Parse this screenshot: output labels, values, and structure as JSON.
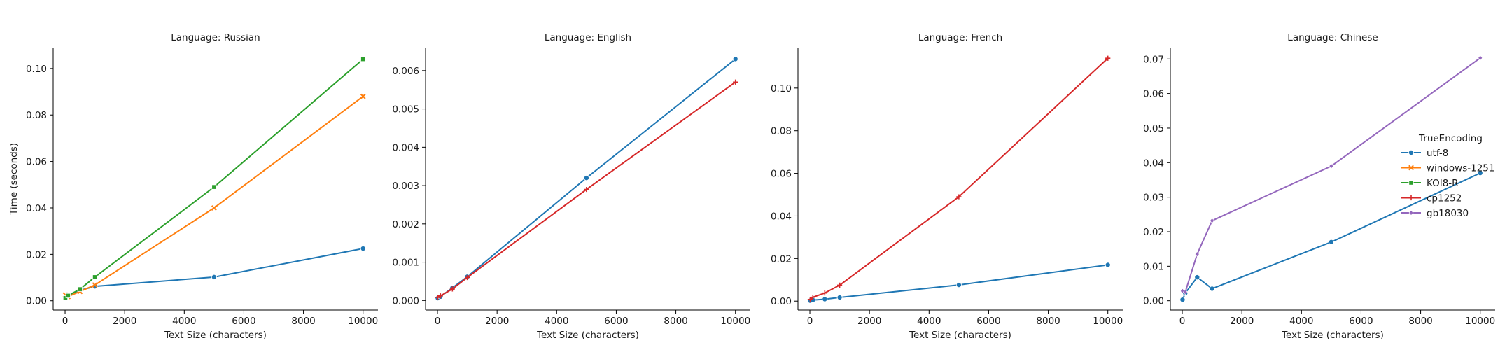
{
  "figure": {
    "suptitle": "",
    "legend": {
      "title": "TrueEncoding",
      "placement": "right",
      "entries": [
        {
          "name": "utf-8",
          "color": "#1f77b4",
          "marker": "circle"
        },
        {
          "name": "windows-1251",
          "color": "#ff7f0e",
          "marker": "x"
        },
        {
          "name": "KOI8-R",
          "color": "#2ca02c",
          "marker": "square"
        },
        {
          "name": "cp1252",
          "color": "#d62728",
          "marker": "plus"
        },
        {
          "name": "gb18030",
          "color": "#9467bd",
          "marker": "diamond"
        }
      ]
    }
  },
  "chart_data": [
    {
      "type": "line",
      "title": "Language: Russian",
      "xlabel": "Text Size (characters)",
      "ylabel": "Time (seconds)",
      "xlim": [
        -400,
        10500
      ],
      "ylim": [
        -0.004,
        0.109
      ],
      "xticks": [
        0,
        2000,
        4000,
        6000,
        8000,
        10000
      ],
      "yticks": [
        0.0,
        0.02,
        0.04,
        0.06,
        0.08,
        0.1
      ],
      "ytick_labels": [
        "0.00",
        "0.02",
        "0.04",
        "0.06",
        "0.08",
        "0.10"
      ],
      "grid": false,
      "series": [
        {
          "name": "utf-8",
          "x": [
            10,
            100,
            500,
            1000,
            5000,
            10000
          ],
          "y": [
            0.0012,
            0.0025,
            0.0045,
            0.0062,
            0.0102,
            0.0225
          ]
        },
        {
          "name": "windows-1251",
          "x": [
            10,
            100,
            500,
            1000,
            5000,
            10000
          ],
          "y": [
            0.0025,
            0.0018,
            0.004,
            0.0068,
            0.04,
            0.088
          ]
        },
        {
          "name": "KOI8-R",
          "x": [
            10,
            100,
            500,
            1000,
            5000,
            10000
          ],
          "y": [
            0.0012,
            0.0022,
            0.005,
            0.0102,
            0.049,
            0.104
          ]
        }
      ]
    },
    {
      "type": "line",
      "title": "Language: English",
      "xlabel": "Text Size (characters)",
      "ylabel": "",
      "xlim": [
        -400,
        10500
      ],
      "ylim": [
        -0.00025,
        0.0066
      ],
      "xticks": [
        0,
        2000,
        4000,
        6000,
        8000,
        10000
      ],
      "yticks": [
        0.0,
        0.001,
        0.002,
        0.003,
        0.004,
        0.005,
        0.006
      ],
      "ytick_labels": [
        "0.000",
        "0.001",
        "0.002",
        "0.003",
        "0.004",
        "0.005",
        "0.006"
      ],
      "grid": false,
      "series": [
        {
          "name": "utf-8",
          "x": [
            10,
            100,
            500,
            1000,
            5000,
            10000
          ],
          "y": [
            6e-05,
            0.0001,
            0.00033,
            0.00062,
            0.0032,
            0.0063
          ]
        },
        {
          "name": "cp1252",
          "x": [
            10,
            100,
            500,
            1000,
            5000,
            10000
          ],
          "y": [
            8e-05,
            0.00012,
            0.0003,
            0.0006,
            0.0029,
            0.0057
          ]
        }
      ]
    },
    {
      "type": "line",
      "title": "Language: French",
      "xlabel": "Text Size (characters)",
      "ylabel": "",
      "xlim": [
        -400,
        10500
      ],
      "ylim": [
        -0.0042,
        0.119
      ],
      "xticks": [
        0,
        2000,
        4000,
        6000,
        8000,
        10000
      ],
      "yticks": [
        0.0,
        0.02,
        0.04,
        0.06,
        0.08,
        0.1
      ],
      "ytick_labels": [
        "0.00",
        "0.02",
        "0.04",
        "0.06",
        "0.08",
        "0.10"
      ],
      "grid": false,
      "series": [
        {
          "name": "utf-8",
          "x": [
            10,
            100,
            500,
            1000,
            5000,
            10000
          ],
          "y": [
            0.0002,
            0.0005,
            0.0009,
            0.0017,
            0.0076,
            0.017
          ]
        },
        {
          "name": "cp1252",
          "x": [
            10,
            100,
            500,
            1000,
            5000,
            10000
          ],
          "y": [
            0.0008,
            0.0018,
            0.0038,
            0.0075,
            0.049,
            0.114
          ]
        }
      ]
    },
    {
      "type": "line",
      "title": "Language: Chinese",
      "xlabel": "Text Size (characters)",
      "ylabel": "",
      "xlim": [
        -400,
        10500
      ],
      "ylim": [
        -0.0027,
        0.0733
      ],
      "xticks": [
        0,
        2000,
        4000,
        6000,
        8000,
        10000
      ],
      "yticks": [
        0.0,
        0.01,
        0.02,
        0.03,
        0.04,
        0.05,
        0.06,
        0.07
      ],
      "ytick_labels": [
        "0.00",
        "0.01",
        "0.02",
        "0.03",
        "0.04",
        "0.05",
        "0.06",
        "0.07"
      ],
      "grid": false,
      "series": [
        {
          "name": "utf-8",
          "x": [
            10,
            100,
            500,
            1000,
            5000,
            10000
          ],
          "y": [
            0.0003,
            0.0022,
            0.0068,
            0.0035,
            0.017,
            0.037
          ]
        },
        {
          "name": "gb18030",
          "x": [
            10,
            100,
            500,
            1000,
            5000,
            10000
          ],
          "y": [
            0.0028,
            0.0025,
            0.0135,
            0.0232,
            0.039,
            0.0703
          ]
        }
      ]
    }
  ]
}
